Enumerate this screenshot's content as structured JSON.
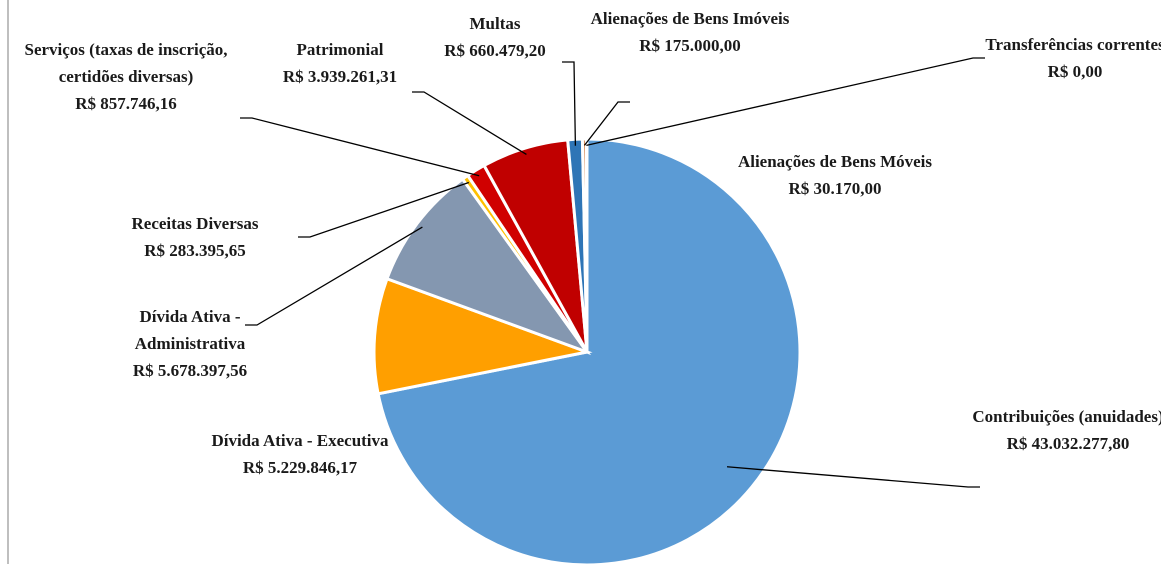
{
  "chart_data": {
    "type": "pie",
    "categories": [
      "Contribuições (anuidades)",
      "Dívida Ativa - Executiva",
      "Dívida Ativa - Administrativa",
      "Receitas Diversas",
      "Serviços (taxas de inscrição, certidões diversas)",
      "Patrimonial",
      "Multas",
      "Alienações de Bens Imóveis",
      "Transferências correntes",
      "Alienações de Bens Móveis"
    ],
    "values": [
      43032277.8,
      5229846.17,
      5678397.56,
      283395.65,
      857746.16,
      3939261.31,
      660479.2,
      175000.0,
      0,
      30170.0
    ],
    "value_labels": [
      "R$ 43.032.277,80",
      "R$ 5.229.846,17",
      "R$ 5.678.397,56",
      "R$ 283.395,65",
      "R$ 857.746,16",
      "R$ 3.939.261,31",
      "R$ 660.479,20",
      "R$ 175.000,00",
      "R$ 0,00",
      "R$ 30.170,00"
    ],
    "colors": [
      "#5b9bd5",
      "#ff9f00",
      "#8497b0",
      "#ffc000",
      "#d00000",
      "#c00000",
      "#2e75b6",
      "#c55a11",
      "#7f7f7f",
      "#a5a5a5"
    ]
  }
}
